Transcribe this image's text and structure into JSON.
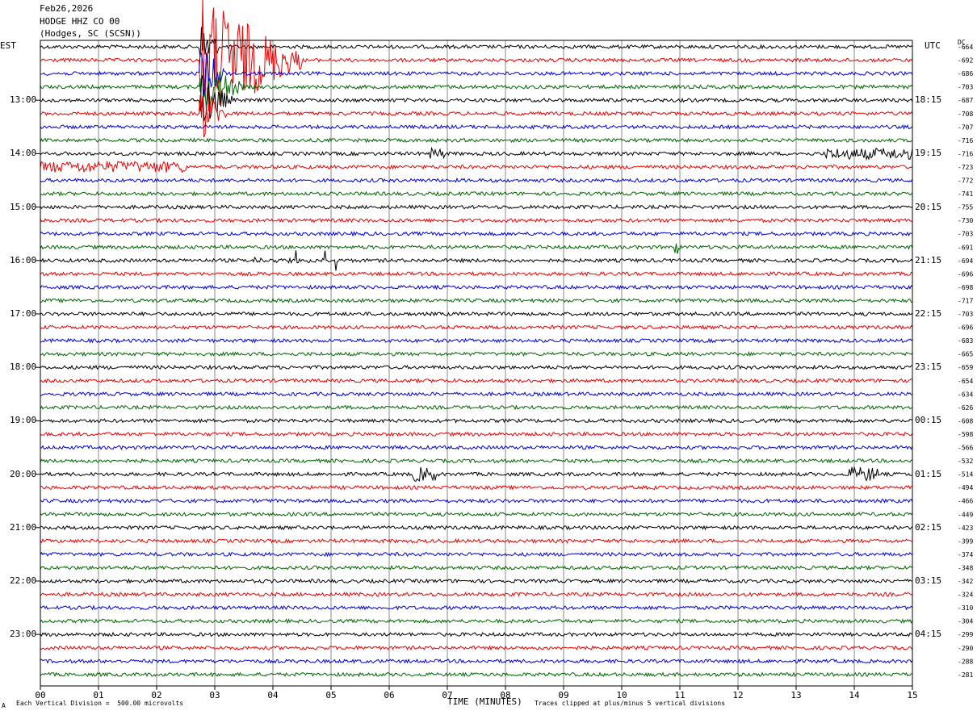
{
  "header": {
    "date": "Feb26,2026",
    "channel": "HODGE HHZ CO 00",
    "location": "(Hodges, SC (SCSN))"
  },
  "axes": {
    "left_label": "EST",
    "right_label": "UTC",
    "dc_label": "DC",
    "x_title": "TIME (MINUTES)"
  },
  "footer": {
    "left_note": "Each Vertical Division =  500.00 microvolts",
    "right_note": "Traces clipped at plus/minus 5 vertical divisions",
    "mark": "A"
  },
  "colors": {
    "cycle": [
      "#000000",
      "#ee0000",
      "#0000dd",
      "#006600"
    ],
    "grid": "#888888"
  },
  "chart_data": {
    "type": "line",
    "title": "HODGE HHZ CO 00",
    "xlabel": "TIME (MINUTES)",
    "xlim": [
      0,
      15
    ],
    "x_ticks": [
      "00",
      "01",
      "02",
      "03",
      "04",
      "05",
      "06",
      "07",
      "08",
      "09",
      "10",
      "11",
      "12",
      "13",
      "14",
      "15"
    ],
    "rows_per_hour": 4,
    "minutes_per_row": 15,
    "est_hour_labels": [
      "13:00",
      "14:00",
      "15:00",
      "16:00",
      "17:00",
      "18:00",
      "19:00",
      "20:00",
      "21:00",
      "22:00",
      "23:00"
    ],
    "utc_hour_labels": [
      "18:15",
      "19:15",
      "20:15",
      "21:15",
      "22:15",
      "23:15",
      "00:15",
      "01:15",
      "02:15",
      "03:15",
      "04:15"
    ],
    "dc_offsets": [
      "-664",
      "-692",
      "-686",
      "-703",
      "-687",
      "-708",
      "-707",
      "-716",
      "-716",
      "-723",
      "-772",
      "-741",
      "-755",
      "-730",
      "-703",
      "-691",
      "-694",
      "-696",
      "-698",
      "-717",
      "-703",
      "-696",
      "-683",
      "-665",
      "-659",
      "-654",
      "-634",
      "-626",
      "-608",
      "-598",
      "-566",
      "-532",
      "-514",
      "-494",
      "-466",
      "-449",
      "-423",
      "-399",
      "-374",
      "-348",
      "-342",
      "-324",
      "-310",
      "-304",
      "-299",
      "-290",
      "-288",
      "-281"
    ],
    "events": [
      {
        "row": 1,
        "start_min": 2.75,
        "end_min": 4.5,
        "amplitude": "clipped",
        "note": "earthquake"
      },
      {
        "row": 0,
        "start_min": 2.75,
        "end_min": 3.1,
        "amplitude": "clipped"
      },
      {
        "row": 2,
        "start_min": 2.75,
        "end_min": 3.2,
        "amplitude": "clipped"
      },
      {
        "row": 3,
        "start_min": 2.75,
        "end_min": 3.5,
        "amplitude": "clipped"
      },
      {
        "row": 4,
        "start_min": 2.75,
        "end_min": 3.3,
        "amplitude": "clipped"
      },
      {
        "row": 5,
        "start_min": 2.75,
        "end_min": 3.2,
        "amplitude": "clipped"
      },
      {
        "row": 8,
        "start_min": 6.7,
        "end_min": 6.95,
        "amplitude": "high"
      },
      {
        "row": 8,
        "start_min": 13.5,
        "end_min": 15.0,
        "amplitude": "high"
      },
      {
        "row": 9,
        "start_min": 0.0,
        "end_min": 2.5,
        "amplitude": "high"
      },
      {
        "row": 15,
        "start_min": 10.9,
        "end_min": 11.0,
        "amplitude": "medium"
      },
      {
        "row": 16,
        "start_min": 3.6,
        "end_min": 5.2,
        "amplitude": "spikes"
      },
      {
        "row": 32,
        "start_min": 6.4,
        "end_min": 6.8,
        "amplitude": "medium"
      },
      {
        "row": 32,
        "start_min": 13.9,
        "end_min": 14.4,
        "amplitude": "medium"
      }
    ]
  }
}
